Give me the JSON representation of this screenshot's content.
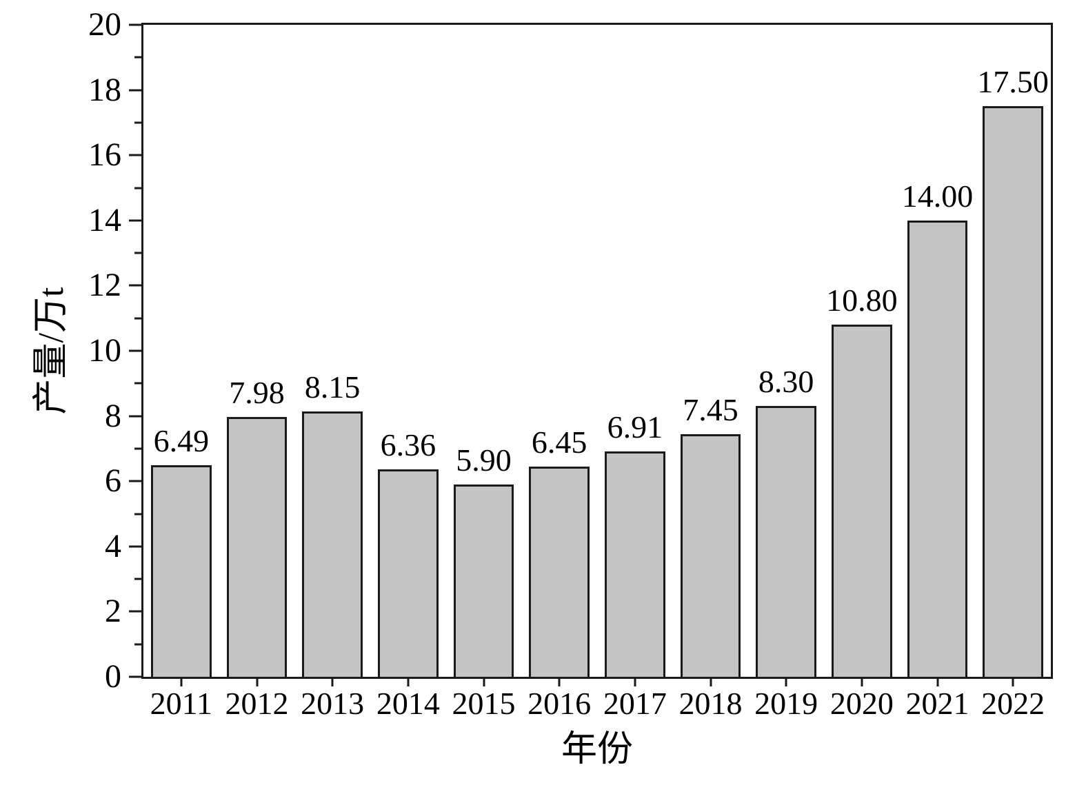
{
  "chart_data": {
    "type": "bar",
    "categories": [
      "2011",
      "2012",
      "2013",
      "2014",
      "2015",
      "2016",
      "2017",
      "2018",
      "2019",
      "2020",
      "2021",
      "2022"
    ],
    "values": [
      6.49,
      7.98,
      8.15,
      6.36,
      5.9,
      6.45,
      6.91,
      7.45,
      8.3,
      10.8,
      14.0,
      17.5
    ],
    "value_labels": [
      "6.49",
      "7.98",
      "8.15",
      "6.36",
      "5.90",
      "6.45",
      "6.91",
      "7.45",
      "8.30",
      "10.80",
      "14.00",
      "17.50"
    ],
    "title": "",
    "xlabel": "年份",
    "ylabel": "产量/万t",
    "ylim": [
      0,
      20
    ],
    "y_major_ticks": [
      0,
      2,
      4,
      6,
      8,
      10,
      12,
      14,
      16,
      18,
      20
    ],
    "y_minor_ticks": [
      1,
      3,
      5,
      7,
      9,
      11,
      13,
      15,
      17,
      19
    ],
    "grid": false,
    "legend": null,
    "bar_fill_color": "#c4c4c4",
    "bar_border_color": "#1a1a1a"
  }
}
